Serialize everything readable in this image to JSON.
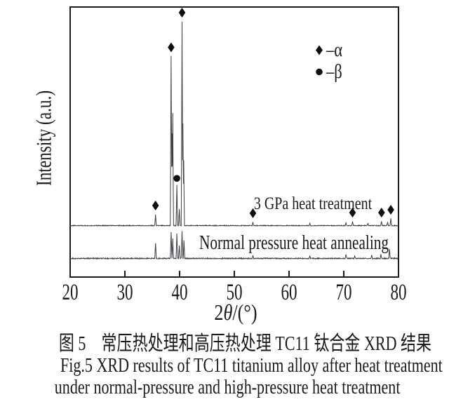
{
  "chart_data": {
    "type": "line",
    "description": "XRD diffraction patterns (two vertically offset traces) of TC11 titanium alloy",
    "xlabel": "2θ/(°)",
    "xlabel_parts": {
      "prefix": "2",
      "theta_italic": "θ",
      "suffix": "/(°)"
    },
    "ylabel": "Intensity (a.u.)",
    "xlim": [
      20,
      80
    ],
    "x_ticks": [
      "20",
      "30",
      "40",
      "50",
      "60",
      "70",
      "80"
    ],
    "y_ticks": [],
    "grid": false,
    "legend_position": "top-right inside plot",
    "legend": [
      {
        "symbol": "diamond",
        "phase": "α",
        "label": "–α"
      },
      {
        "symbol": "circle",
        "phase": "β",
        "label": "–β"
      }
    ],
    "peak_width_deg": 0.14,
    "intensity_units": "relative intensity, 100 = strongest peak",
    "series": [
      {
        "name": "3 GPa heat treatment",
        "offset": "upper",
        "peaks": [
          [
            35.6,
            5.5
          ],
          [
            38.45,
            83
          ],
          [
            38.6,
            45
          ],
          [
            38.75,
            55
          ],
          [
            39.5,
            20
          ],
          [
            39.95,
            8
          ],
          [
            40.45,
            100
          ],
          [
            40.6,
            50
          ],
          [
            40.75,
            32
          ],
          [
            53.4,
            1.7
          ],
          [
            63.8,
            1.2
          ],
          [
            70.4,
            1.5
          ],
          [
            71.6,
            2.0
          ],
          [
            74.4,
            1.2
          ],
          [
            76.9,
            2.0
          ],
          [
            78.0,
            1.7
          ],
          [
            78.6,
            3.4
          ]
        ]
      },
      {
        "name": "Normal pressure heat annealing",
        "offset": "lower",
        "peaks": [
          [
            35.6,
            7.5
          ],
          [
            38.45,
            13
          ],
          [
            38.75,
            10
          ],
          [
            39.5,
            12
          ],
          [
            39.95,
            6.5
          ],
          [
            40.45,
            13.5
          ],
          [
            40.8,
            9
          ],
          [
            53.4,
            1.4
          ],
          [
            63.8,
            1.4
          ],
          [
            70.4,
            2.0
          ],
          [
            72.0,
            1.2
          ],
          [
            75.1,
            1.7
          ],
          [
            76.8,
            2.0
          ],
          [
            78.35,
            4.8
          ]
        ]
      }
    ],
    "alpha_markers_two_theta": [
      35.6,
      38.45,
      40.45,
      53.4,
      71.6,
      76.9,
      78.6
    ],
    "beta_markers_two_theta": [
      39.5
    ]
  },
  "caption": {
    "line1": "图 5　常压热处理和高压热处理 TC11 钛合金 XRD 结果",
    "line2": "Fig.5 XRD results of TC11 titanium alloy after heat treatment",
    "line3": "under normal-pressure and high-pressure heat treatment"
  },
  "colors": {
    "background": "#ffffff",
    "axis": "#1a1a1a",
    "trace": "#3f3f46",
    "marker": "#0d0d12",
    "text": "#1a1a1a"
  }
}
